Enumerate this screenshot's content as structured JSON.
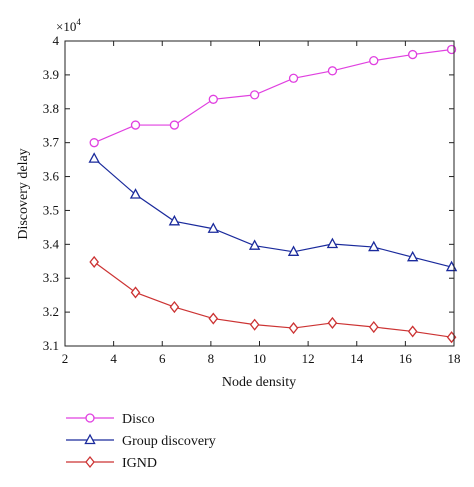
{
  "chart_data": {
    "type": "line",
    "xlabel": "Node density",
    "ylabel": "Discovery delay",
    "y_multiplier_label": "×10",
    "y_multiplier_exponent": "4",
    "xlim": [
      2,
      18
    ],
    "ylim": [
      3.1,
      4.0
    ],
    "x_ticks": [
      2,
      4,
      6,
      8,
      10,
      12,
      14,
      16,
      18
    ],
    "y_ticks": [
      3.1,
      3.2,
      3.3,
      3.4,
      3.5,
      3.6,
      3.7,
      3.8,
      3.9,
      4
    ],
    "x_tick_labels": [
      "2",
      "4",
      "6",
      "8",
      "10",
      "12",
      "14",
      "16",
      "18"
    ],
    "y_tick_labels": [
      "3.1",
      "3.2",
      "3.3",
      "3.4",
      "3.5",
      "3.6",
      "3.7",
      "3.8",
      "3.9",
      "4"
    ],
    "grid": false,
    "legend_position": "below",
    "x": [
      3.2,
      4.9,
      6.5,
      8.1,
      9.8,
      11.4,
      13.0,
      14.7,
      16.3,
      17.9
    ],
    "series": [
      {
        "name": "Disco",
        "marker": "circle",
        "color": "#e040e0",
        "values": [
          3.7,
          3.752,
          3.752,
          3.828,
          3.841,
          3.89,
          3.912,
          3.942,
          3.96,
          3.975
        ]
      },
      {
        "name": "Group discovery",
        "marker": "triangle",
        "color": "#1a2a9c",
        "values": [
          3.653,
          3.547,
          3.468,
          3.446,
          3.396,
          3.378,
          3.401,
          3.392,
          3.362,
          3.333
        ]
      },
      {
        "name": "IGND",
        "marker": "diamond",
        "color": "#cc3333",
        "values": [
          3.348,
          3.258,
          3.215,
          3.181,
          3.163,
          3.153,
          3.168,
          3.156,
          3.143,
          3.126
        ]
      }
    ]
  }
}
